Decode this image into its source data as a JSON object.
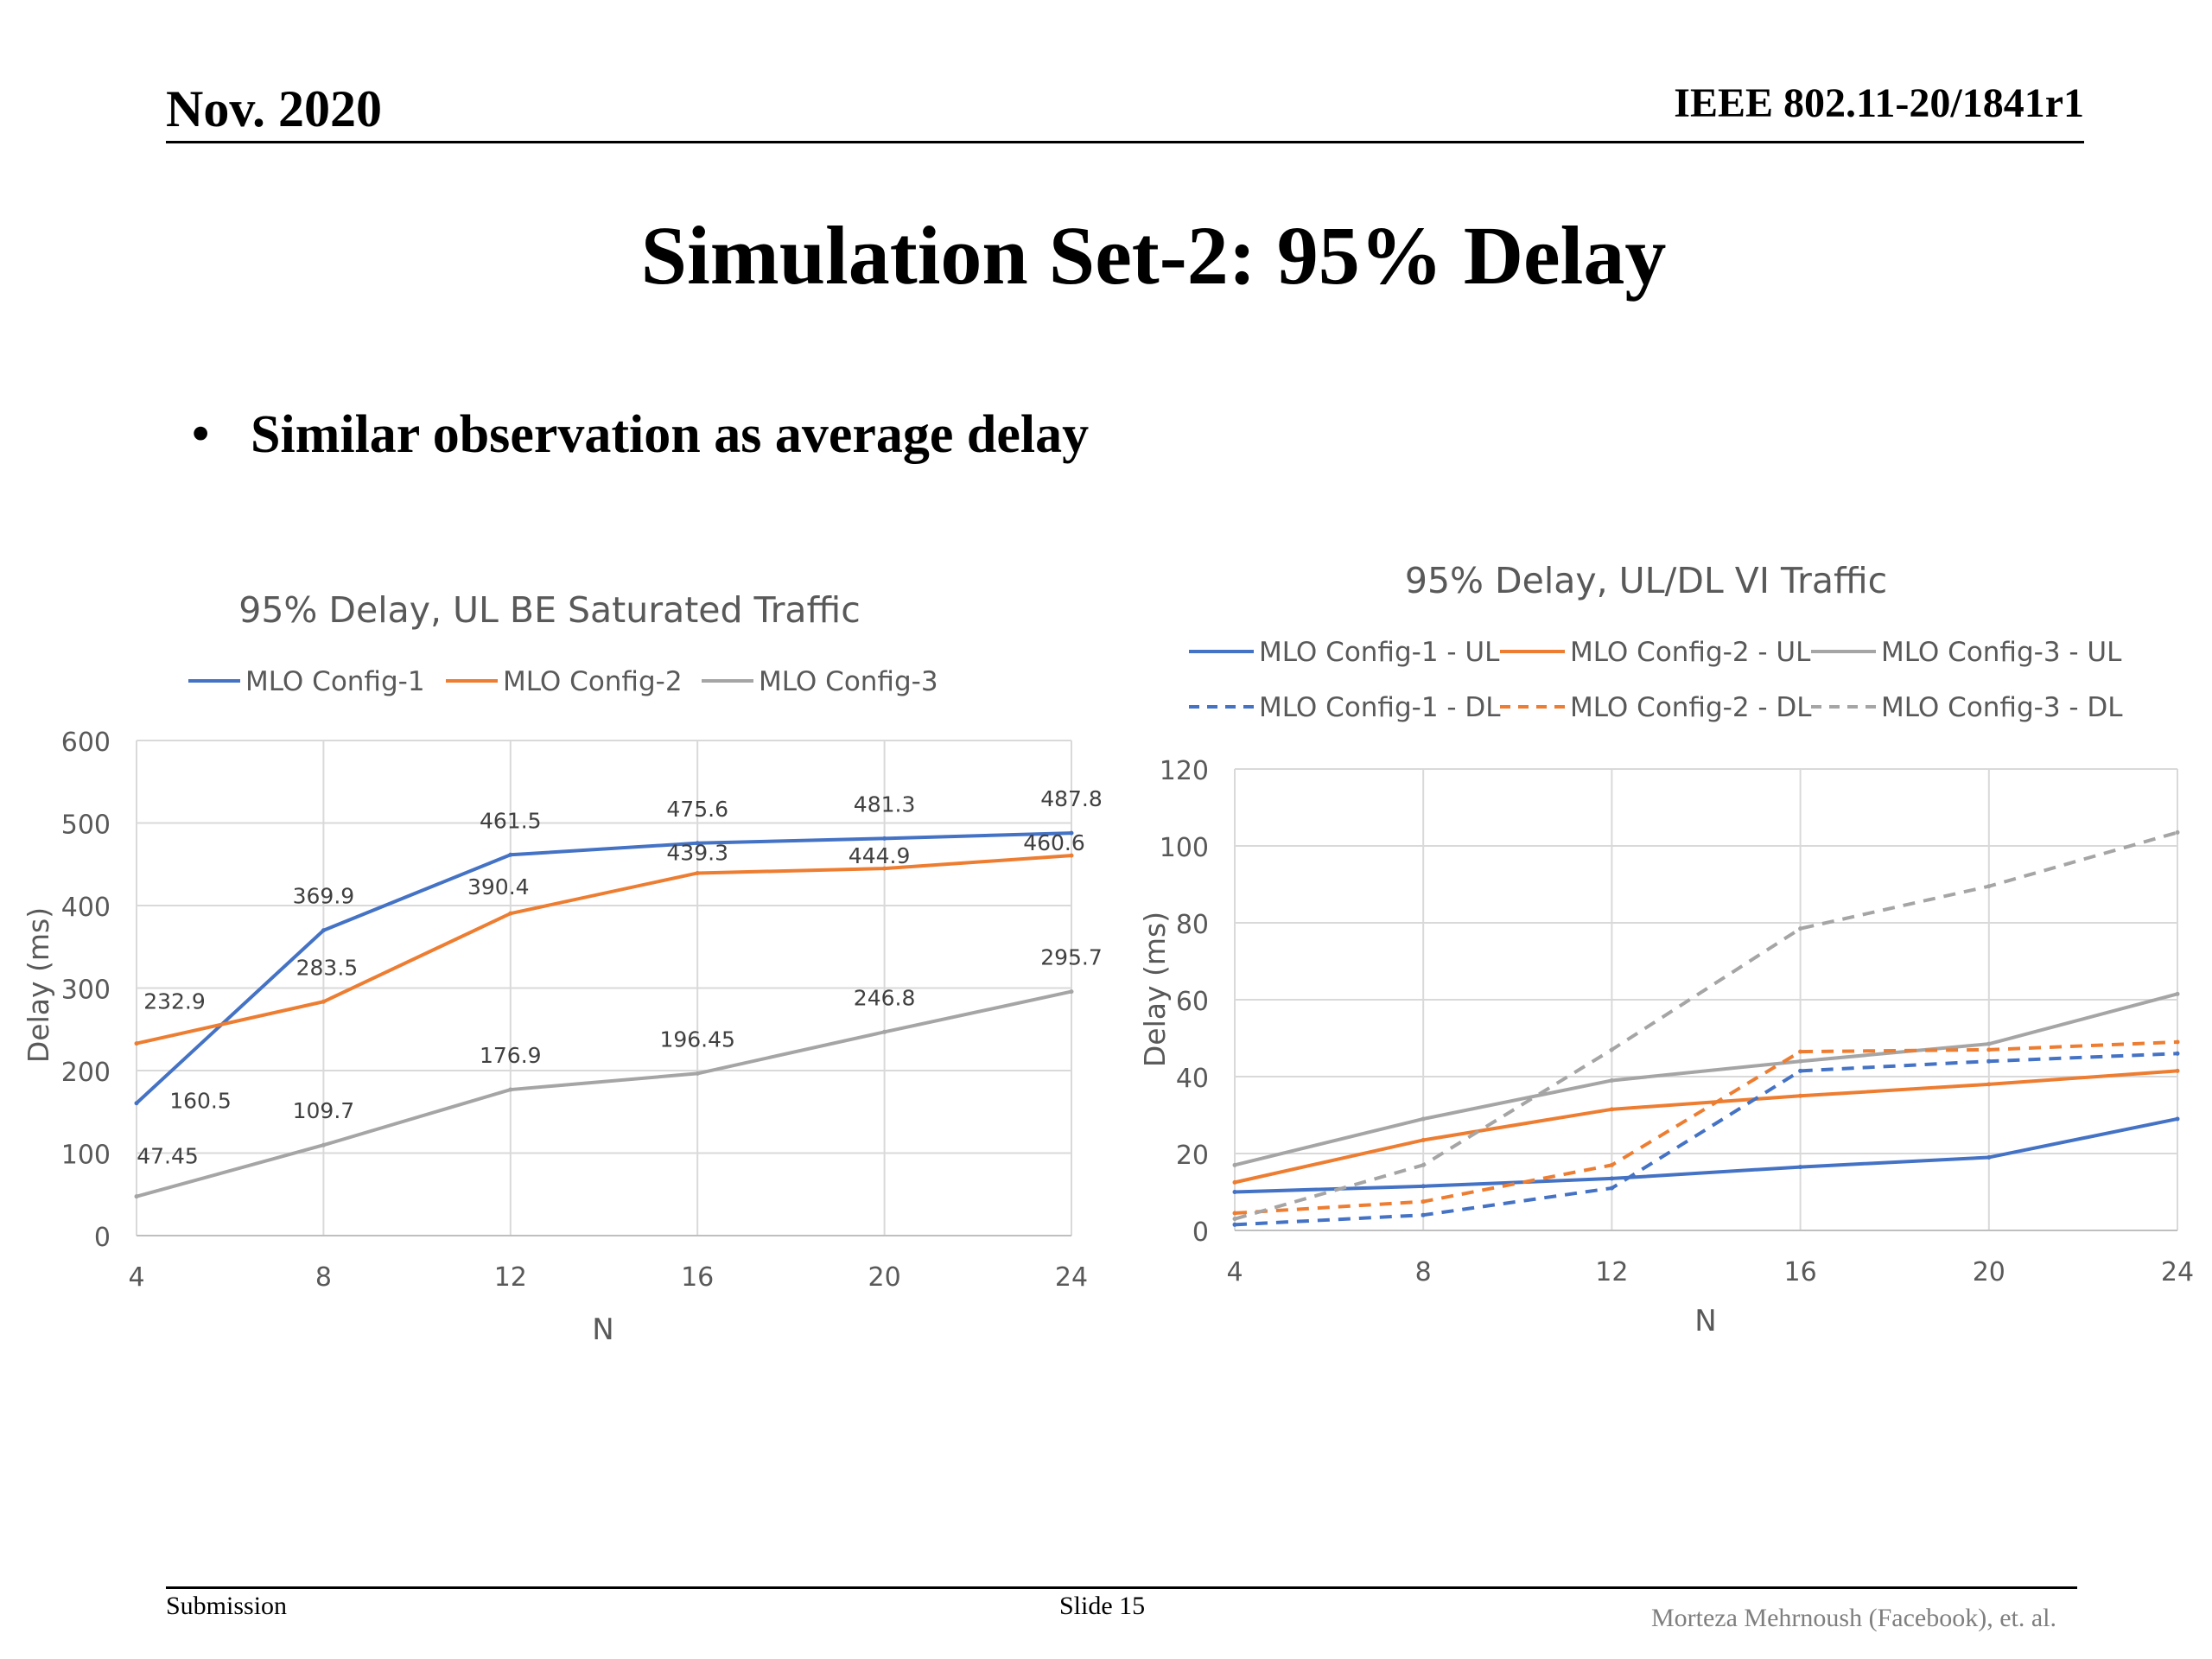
{
  "header": {
    "date": "Nov. 2020",
    "doc_id": "IEEE 802.11-20/1841r1"
  },
  "slide": {
    "title": "Simulation Set-2: 95% Delay",
    "bullets": [
      "Similar observation as average delay"
    ]
  },
  "footer": {
    "left": "Submission",
    "center": "Slide 15",
    "right": "Morteza Mehrnoush (Facebook), et. al."
  },
  "colors": {
    "blue": "#4472C4",
    "orange": "#ED7D31",
    "gray": "#A5A5A5"
  },
  "chart_data": [
    {
      "type": "line",
      "title": "95% Delay, UL BE Saturated Traffic",
      "xlabel": "N",
      "ylabel": "Delay (ms)",
      "x": [
        4,
        8,
        12,
        16,
        20,
        24
      ],
      "xlim": [
        4,
        24
      ],
      "ylim": [
        0,
        600
      ],
      "yticks": [
        0,
        100,
        200,
        300,
        400,
        500,
        600
      ],
      "grid": true,
      "legend": "top",
      "series": [
        {
          "name": "MLO Config-1",
          "color": "#4472C4",
          "dash": false,
          "values": [
            160.5,
            369.9,
            461.5,
            475.6,
            481.3,
            487.8
          ],
          "labels": [
            "160.5",
            "369.9",
            "461.5",
            "475.6",
            "481.3",
            "487.8"
          ]
        },
        {
          "name": "MLO Config-2",
          "color": "#ED7D31",
          "dash": false,
          "values": [
            232.9,
            283.5,
            390.4,
            439.3,
            444.9,
            460.6
          ],
          "labels": [
            "232.9",
            "283.5",
            "390.4",
            "439.3",
            "444.9",
            "460.6"
          ]
        },
        {
          "name": "MLO Config-3",
          "color": "#A5A5A5",
          "dash": false,
          "values": [
            47.45,
            109.7,
            176.9,
            196.45,
            246.8,
            295.7
          ],
          "labels": [
            "47.45",
            "109.7",
            "176.9",
            "196.45",
            "246.8",
            "295.7"
          ]
        }
      ]
    },
    {
      "type": "line",
      "title": "95% Delay, UL/DL VI Traffic",
      "xlabel": "N",
      "ylabel": "Delay (ms)",
      "x": [
        4,
        8,
        12,
        16,
        20,
        24
      ],
      "xlim": [
        4,
        24
      ],
      "ylim": [
        0,
        120
      ],
      "yticks": [
        0,
        20,
        40,
        60,
        80,
        100,
        120
      ],
      "grid": true,
      "legend": "top",
      "series": [
        {
          "name": "MLO Config-1 - UL",
          "color": "#4472C4",
          "dash": false,
          "values": [
            10,
            11.5,
            13.5,
            16.5,
            19,
            29
          ]
        },
        {
          "name": "MLO Config-2 - UL",
          "color": "#ED7D31",
          "dash": false,
          "values": [
            12.5,
            23.5,
            31.5,
            35,
            38,
            41.5
          ]
        },
        {
          "name": "MLO Config-3 - UL",
          "color": "#A5A5A5",
          "dash": false,
          "values": [
            17,
            29,
            39,
            44,
            48.5,
            61.5
          ]
        },
        {
          "name": "MLO Config-1 - DL",
          "color": "#4472C4",
          "dash": true,
          "values": [
            1.5,
            4,
            11,
            41.5,
            44,
            46
          ]
        },
        {
          "name": "MLO Config-2 - DL",
          "color": "#ED7D31",
          "dash": true,
          "values": [
            4.5,
            7.5,
            17,
            46.5,
            47,
            49
          ]
        },
        {
          "name": "MLO Config-3 - DL",
          "color": "#A5A5A5",
          "dash": true,
          "values": [
            3,
            17,
            47,
            78.5,
            89.5,
            103.5
          ]
        }
      ]
    }
  ]
}
